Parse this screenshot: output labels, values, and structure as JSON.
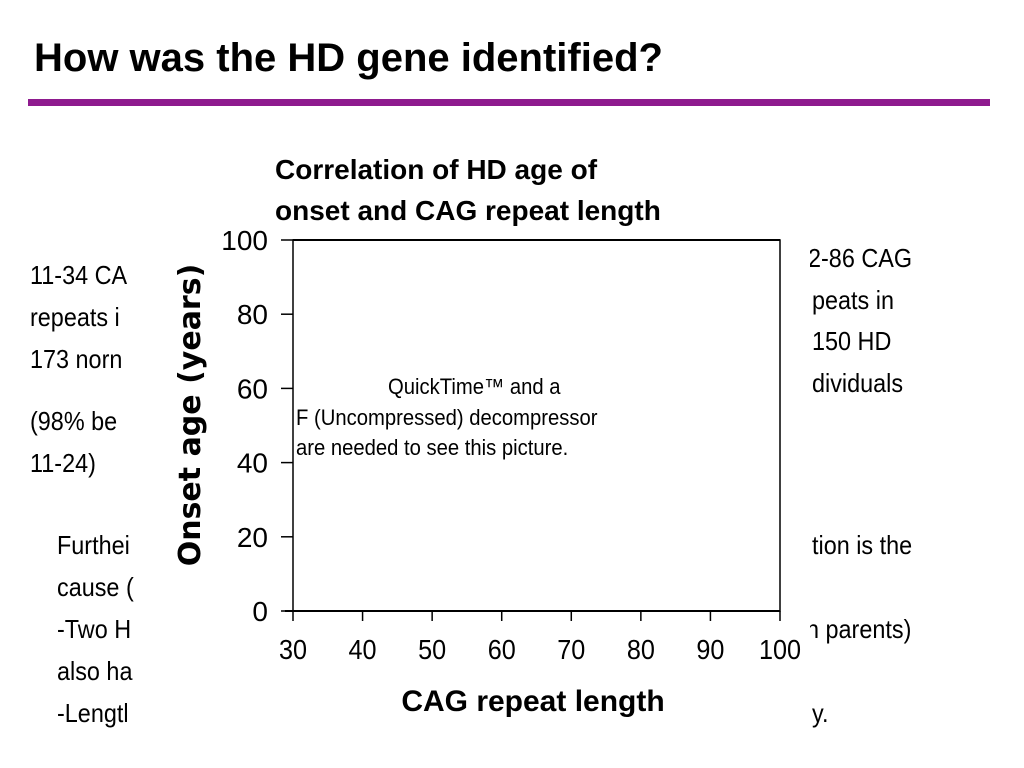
{
  "slide_title": "How was the HD gene identified?",
  "left_fragments": [
    "11-34 CA",
    "repeats i",
    "173 norn",
    "(98% be",
    "11-24)"
  ],
  "bottom_fragments": [
    "Furthei",
    "cause (",
    "-Two H",
    "also ha",
    "-Lengtl"
  ],
  "right_fragments": [
    "2-86 CAG",
    "peats in",
    "150 HD",
    "dividuals"
  ],
  "bottom_right_fragments": [
    "tion is the",
    "n parents)",
    "y."
  ],
  "placeholder": {
    "line1": "QuickTime™ and a",
    "line2": "F (Uncompressed) decompressor",
    "line3": "are needed to see this picture."
  },
  "chart_data": {
    "type": "scatter",
    "title_lines": [
      "Correlation of HD age of",
      "onset and CAG repeat length"
    ],
    "xlabel": "CAG repeat length",
    "ylabel": "Onset age (years)",
    "xlim": [
      30,
      100
    ],
    "ylim": [
      0,
      100
    ],
    "xticks": [
      30,
      40,
      50,
      60,
      70,
      80,
      90,
      100
    ],
    "yticks": [
      0,
      20,
      40,
      60,
      80,
      100
    ],
    "points": []
  }
}
